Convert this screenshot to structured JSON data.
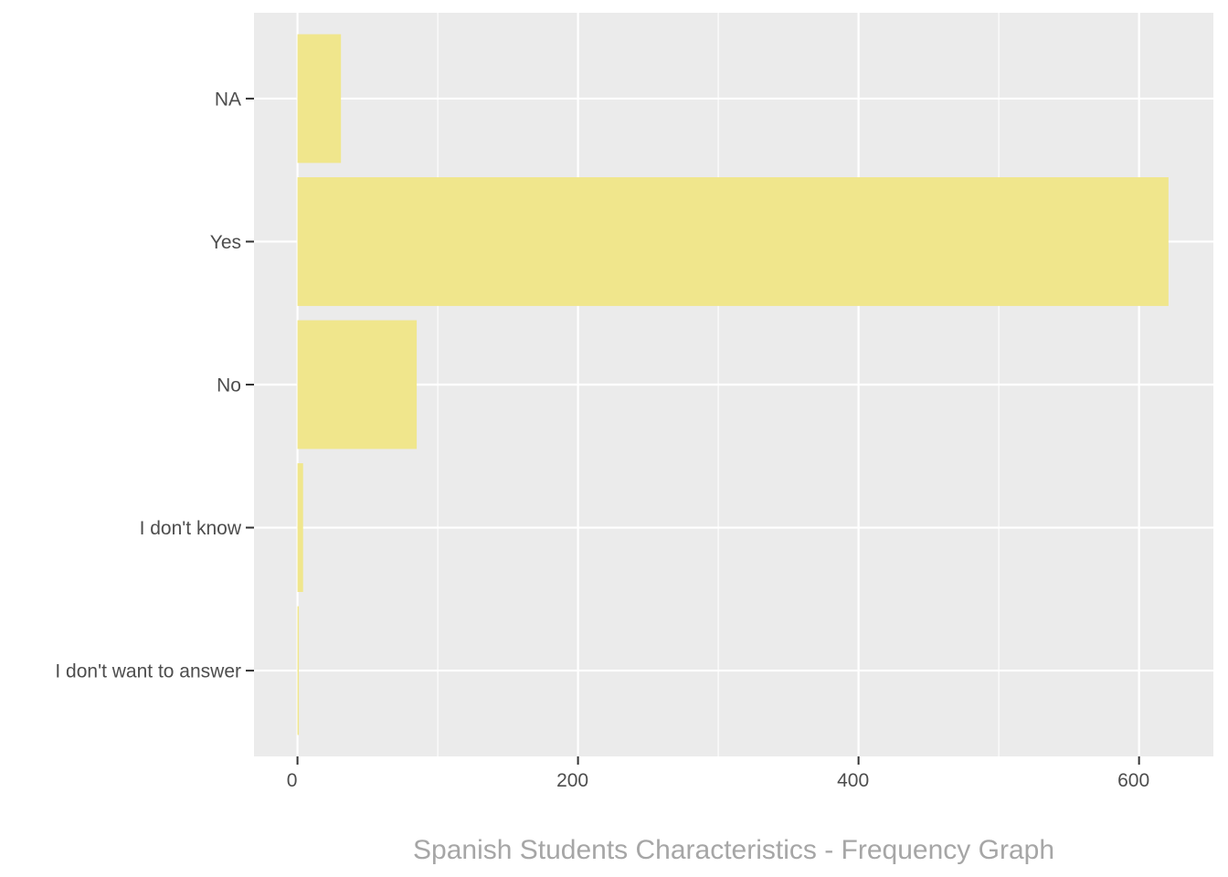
{
  "chart_data": {
    "type": "bar",
    "orientation": "horizontal",
    "categories": [
      "I don't want to answer",
      "I don't know",
      "No",
      "Yes",
      "NA"
    ],
    "values": [
      1,
      4,
      85,
      621,
      31
    ],
    "xlim": [
      -31,
      653
    ],
    "x_ticks": [
      0,
      200,
      400,
      600
    ],
    "x_tick_labels": [
      "0",
      "200",
      "400",
      "600"
    ],
    "caption": "Spanish Students Characteristics - Frequency Graph",
    "grid": true,
    "legend": "none",
    "bar_color": "#F0E68C",
    "panel_color": "#EBEBEB",
    "grid_color": "#FFFFFF",
    "tick_label_color": "#4D4D4D",
    "caption_color": "#A6A6A6"
  }
}
